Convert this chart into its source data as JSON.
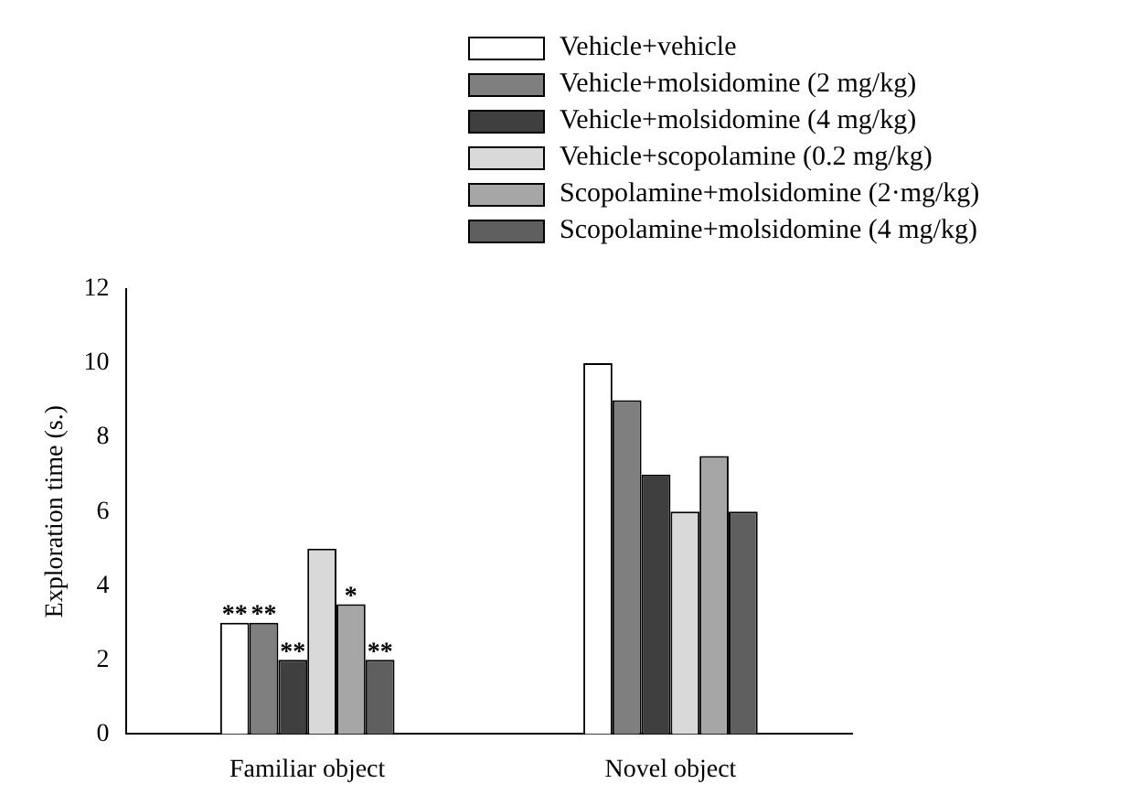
{
  "chart_data": {
    "type": "bar",
    "ylabel": "Exploration time (s.)",
    "categories": [
      "Familiar object",
      "Novel object"
    ],
    "series": [
      {
        "name": "Vehicle+vehicle",
        "color": "#ffffff",
        "values": [
          3,
          10
        ]
      },
      {
        "name": "Vehicle+molsidomine (2 mg/kg)",
        "color": "#7f7f7f",
        "values": [
          3,
          9
        ]
      },
      {
        "name": "Vehicle+molsidomine (4 mg/kg)",
        "color": "#3f3f3f",
        "values": [
          2,
          7
        ]
      },
      {
        "name": "Vehicle+scopolamine (0.2 mg/kg)",
        "color": "#d9d9d9",
        "values": [
          5,
          6
        ]
      },
      {
        "name": "Scopolamine+molsidomine (2·mg/kg)",
        "color": "#a6a6a6",
        "values": [
          3.5,
          7.5
        ]
      },
      {
        "name": "Scopolamine+molsidomine (4 mg/kg)",
        "color": "#5f5f5f",
        "values": [
          2,
          6
        ]
      }
    ],
    "ylim": [
      0,
      12
    ],
    "yticks": [
      0,
      2,
      4,
      6,
      8,
      10,
      12
    ],
    "grid": false,
    "legend": "top right",
    "annotations": [
      {
        "text": "**",
        "x": "Familiar object",
        "y": 3
      },
      {
        "text": "**",
        "x": "Familiar object",
        "y": 3
      },
      {
        "text": "**",
        "x": "Familiar object",
        "y": 2
      },
      {
        "text": "*",
        "x": "Familiar object",
        "y": 3.5
      },
      {
        "text": "**",
        "x": "Familiar object",
        "y": 2
      }
    ]
  }
}
